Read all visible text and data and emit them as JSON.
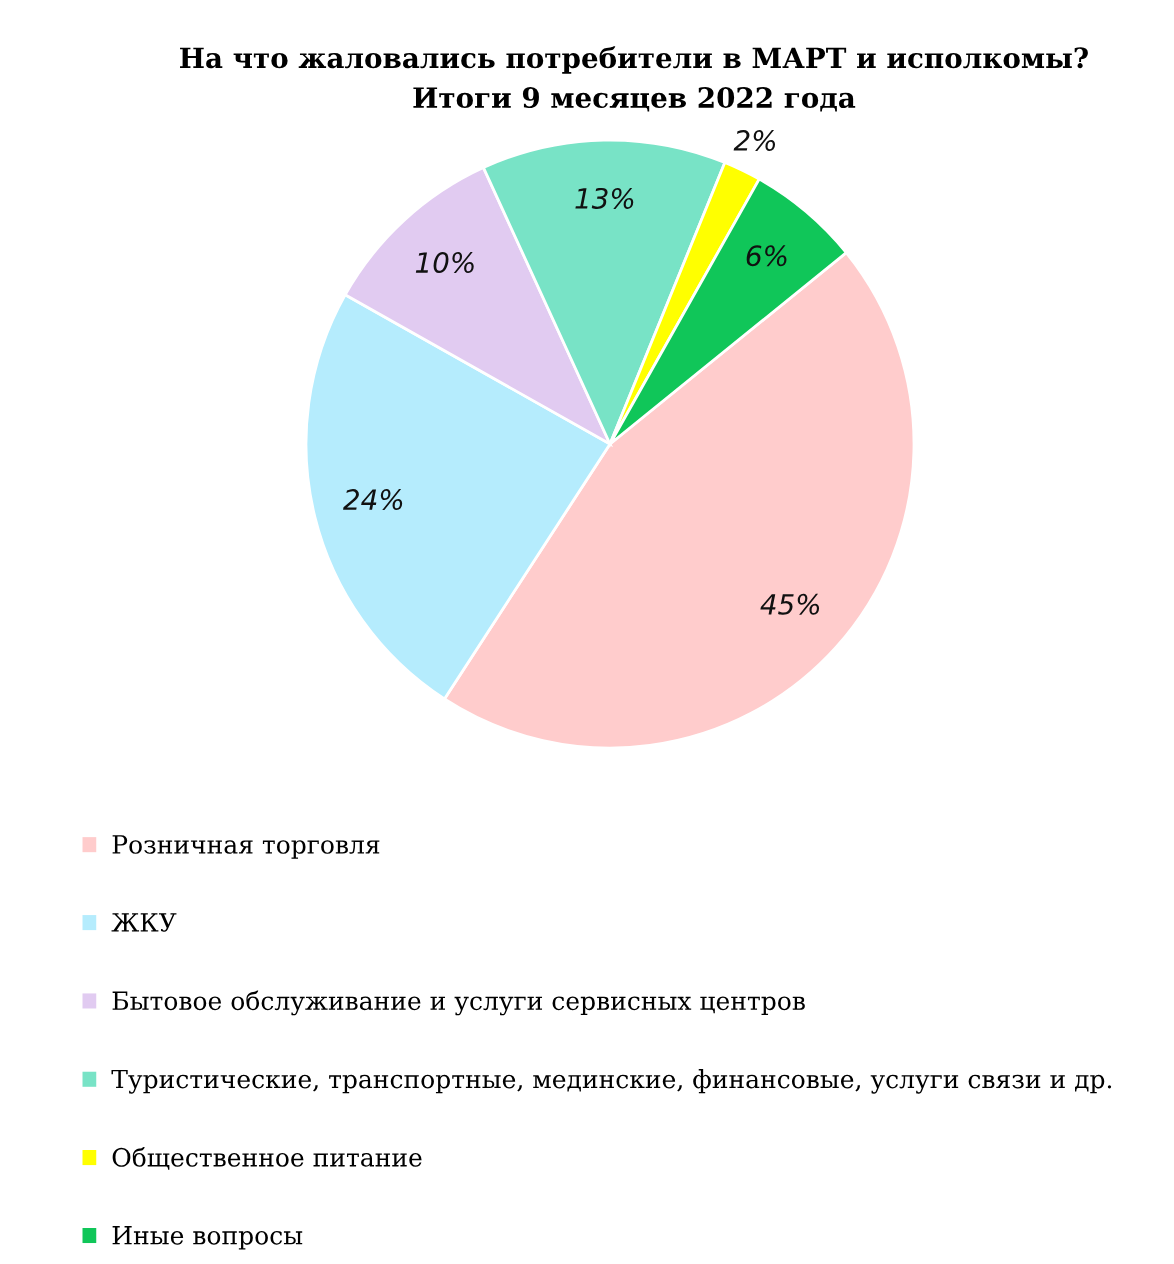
{
  "chart_data": {
    "type": "pie",
    "title": "На что жаловались потребители в МАРТ и исполкомы?",
    "subtitle": "Итоги 9 месяцев 2022 года",
    "categories": [
      "Розничная торговля",
      "ЖКУ",
      "Бытовое обслуживание и услуги сервисных центров",
      "Туристические, транспортные, мединские, финансовые, услуги связи и др.",
      "Общественное питание",
      "Иные вопросы"
    ],
    "values": [
      45,
      24,
      10,
      13,
      2,
      6
    ],
    "colors": [
      "#ffcccc",
      "#b5ecfd",
      "#e1cbf1",
      "#78e3c6",
      "#ffff00",
      "#10c659"
    ],
    "value_labels": [
      "45%",
      "24%",
      "10%",
      "13%",
      "2%",
      "6%"
    ],
    "legend": "bottom"
  }
}
